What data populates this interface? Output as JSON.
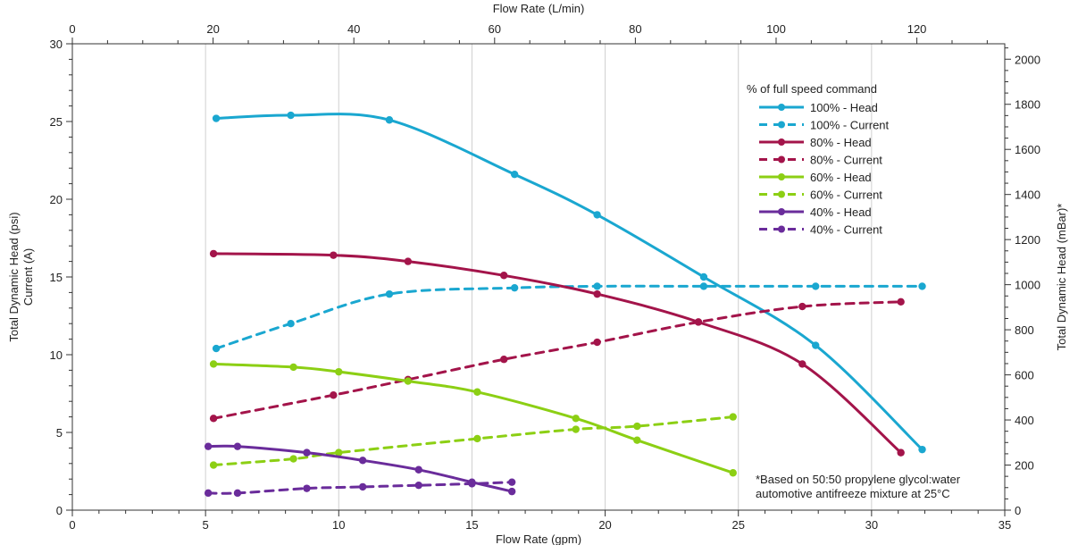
{
  "chart_data": {
    "type": "line",
    "x_bottom": {
      "label": "Flow Rate (gpm)",
      "lim": [
        0,
        35
      ],
      "ticks": [
        0,
        5,
        10,
        15,
        20,
        25,
        30,
        35
      ],
      "minor_step": 1
    },
    "x_top": {
      "label": "Flow Rate (L/min)",
      "lim": [
        0,
        132.49
      ],
      "ticks": [
        0,
        20,
        40,
        60,
        80,
        100,
        120
      ]
    },
    "y_left": {
      "label_line1": "Total Dynamic Head (psi)",
      "label_line2": "Current (A)",
      "lim": [
        0,
        30
      ],
      "ticks": [
        0,
        5,
        10,
        15,
        20,
        25,
        30
      ],
      "minor_step": 1
    },
    "y_right": {
      "label": "Total Dynamic Head (mBar)*",
      "lim": [
        0,
        2068.4
      ],
      "ticks": [
        0,
        200,
        400,
        600,
        800,
        1000,
        1200,
        1400,
        1600,
        1800,
        2000
      ]
    },
    "grid": "vertical",
    "legend": {
      "title": "% of full speed command",
      "placement": "upper-right"
    },
    "note_line1": "*Based on 50:50 propylene glycol:water",
    "note_line2": "automotive antifreeze mixture at 25°C",
    "series": [
      {
        "name": "100% - Head",
        "color": "#1aa7d0",
        "style": "solid",
        "points": [
          [
            5.4,
            25.2
          ],
          [
            8.2,
            25.4
          ],
          [
            11.9,
            25.1
          ],
          [
            16.6,
            21.6
          ],
          [
            19.7,
            19.0
          ],
          [
            23.7,
            15.0
          ],
          [
            27.9,
            10.6
          ],
          [
            31.9,
            3.9
          ]
        ]
      },
      {
        "name": "100% - Current",
        "color": "#1aa7d0",
        "style": "dashed",
        "points": [
          [
            5.4,
            10.4
          ],
          [
            8.2,
            12.0
          ],
          [
            11.9,
            13.9
          ],
          [
            16.6,
            14.3
          ],
          [
            19.7,
            14.4
          ],
          [
            23.7,
            14.4
          ],
          [
            27.9,
            14.4
          ],
          [
            31.9,
            14.4
          ]
        ]
      },
      {
        "name": "80% - Head",
        "color": "#a3144a",
        "style": "solid",
        "points": [
          [
            5.3,
            16.5
          ],
          [
            9.8,
            16.4
          ],
          [
            12.6,
            16.0
          ],
          [
            16.2,
            15.1
          ],
          [
            19.7,
            13.9
          ],
          [
            23.5,
            12.1
          ],
          [
            27.4,
            9.4
          ],
          [
            31.1,
            3.7
          ]
        ]
      },
      {
        "name": "80% - Current",
        "color": "#a3144a",
        "style": "dashed",
        "points": [
          [
            5.3,
            5.9
          ],
          [
            9.8,
            7.4
          ],
          [
            12.6,
            8.4
          ],
          [
            16.2,
            9.7
          ],
          [
            19.7,
            10.8
          ],
          [
            23.5,
            12.1
          ],
          [
            27.4,
            13.1
          ],
          [
            31.1,
            13.4
          ]
        ]
      },
      {
        "name": "60% - Head",
        "color": "#8ccf14",
        "style": "solid",
        "points": [
          [
            5.3,
            9.4
          ],
          [
            8.3,
            9.2
          ],
          [
            10.0,
            8.9
          ],
          [
            12.6,
            8.3
          ],
          [
            15.2,
            7.6
          ],
          [
            18.9,
            5.9
          ],
          [
            21.2,
            4.5
          ],
          [
            24.8,
            2.4
          ]
        ]
      },
      {
        "name": "60% - Current",
        "color": "#8ccf14",
        "style": "dashed",
        "points": [
          [
            5.3,
            2.9
          ],
          [
            8.3,
            3.3
          ],
          [
            10.0,
            3.7
          ],
          [
            15.2,
            4.6
          ],
          [
            18.9,
            5.2
          ],
          [
            21.2,
            5.4
          ],
          [
            24.8,
            6.0
          ]
        ]
      },
      {
        "name": "40% - Head",
        "color": "#6a2c9b",
        "style": "solid",
        "points": [
          [
            5.1,
            4.1
          ],
          [
            6.2,
            4.1
          ],
          [
            8.8,
            3.7
          ],
          [
            10.9,
            3.2
          ],
          [
            13.0,
            2.6
          ],
          [
            15.0,
            1.8
          ],
          [
            16.5,
            1.2
          ]
        ]
      },
      {
        "name": "40% - Current",
        "color": "#6a2c9b",
        "style": "dashed",
        "points": [
          [
            5.1,
            1.1
          ],
          [
            6.2,
            1.1
          ],
          [
            8.8,
            1.4
          ],
          [
            10.9,
            1.5
          ],
          [
            13.0,
            1.6
          ],
          [
            15.0,
            1.7
          ],
          [
            16.5,
            1.8
          ]
        ]
      }
    ]
  }
}
